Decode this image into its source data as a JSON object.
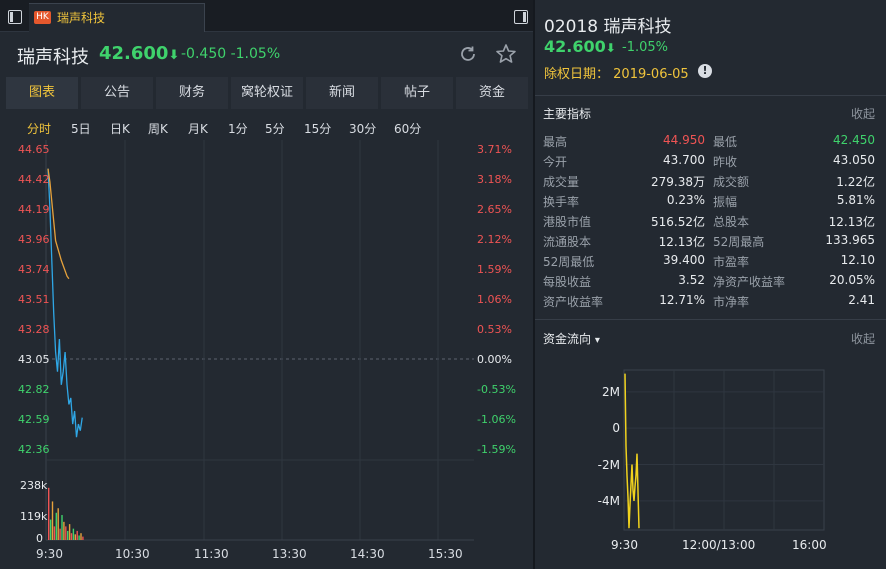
{
  "tab": {
    "badge": "HK",
    "title": "瑞声科技"
  },
  "quote": {
    "name": "瑞声科技",
    "price": "42.600",
    "arrow": "⬇",
    "change": "-0.450",
    "pct": "-1.05%"
  },
  "nav": [
    "图表",
    "公告",
    "财务",
    "窝轮权证",
    "新闻",
    "帖子",
    "资金"
  ],
  "periods": [
    "分时",
    "5日",
    "日K",
    "周K",
    "月K",
    "1分",
    "5分",
    "15分",
    "30分",
    "60分"
  ],
  "chart_data": [
    {
      "type": "line",
      "title": "分时",
      "y_price_ticks": [
        "44.65",
        "44.42",
        "44.19",
        "43.96",
        "43.74",
        "43.51",
        "43.28",
        "43.05",
        "42.82",
        "42.59",
        "42.36"
      ],
      "y_pct_ticks": [
        "3.71%",
        "3.18%",
        "2.65%",
        "2.12%",
        "1.59%",
        "1.06%",
        "0.53%",
        "0.00%",
        "-0.53%",
        "-1.06%",
        "-1.59%"
      ],
      "prev_close": 43.05,
      "ylim": [
        42.36,
        44.65
      ],
      "x_ticks": [
        "9:30",
        "10:30",
        "11:30",
        "13:30",
        "14:30",
        "15:30"
      ],
      "series": [
        {
          "color": "#2fa7e6",
          "values": [
            44.5,
            44.2,
            43.8,
            43.4,
            43.1,
            42.95,
            43.2,
            42.85,
            42.95,
            43.1,
            42.85,
            42.7,
            42.75,
            42.55,
            42.65,
            42.45,
            42.55,
            42.5,
            42.6
          ]
        },
        {
          "color": "#e6a23c",
          "values": [
            44.5,
            44.4,
            44.25,
            44.1,
            43.95,
            43.9,
            43.85,
            43.8,
            43.76,
            43.72,
            43.68,
            43.66
          ]
        }
      ],
      "volume_ticks": [
        "238k",
        "119k",
        "0"
      ],
      "volume": [
        230,
        90,
        170,
        60,
        120,
        140,
        50,
        110,
        80,
        60,
        40,
        70,
        30,
        50,
        25,
        40,
        20,
        30,
        15
      ]
    },
    {
      "type": "bar",
      "title": "资金流向",
      "y_ticks": [
        "2M",
        "0",
        "-2M",
        "-4M"
      ],
      "ylim": [
        -5.6,
        3.2
      ],
      "x_ticks": [
        "9:30",
        "12:00/13:00",
        "16:00"
      ],
      "values": [
        3.0,
        -1.0,
        -2.6,
        -3.8,
        -5.5,
        -4.2,
        -3.1,
        -2.0,
        -3.4,
        -4.0,
        -3.2,
        -2.6,
        -1.4,
        -3.5,
        -5.5
      ]
    }
  ],
  "right": {
    "code": "02018 瑞声科技",
    "price": "42.600",
    "arrow": "⬇",
    "pct": "-1.05%",
    "xdate_label": "除权日期：",
    "xdate": "2019-06-05",
    "metrics_title": "主要指标",
    "collapse": "收起",
    "metrics": [
      [
        "最高",
        "44.950",
        "最低",
        "42.450"
      ],
      [
        "今开",
        "43.700",
        "昨收",
        "43.050"
      ],
      [
        "成交量",
        "279.38万",
        "成交额",
        "1.22亿"
      ],
      [
        "换手率",
        "0.23%",
        "振幅",
        "5.81%"
      ],
      [
        "港股市值",
        "516.52亿",
        "总股本",
        "12.13亿"
      ],
      [
        "流通股本",
        "12.13亿",
        "52周最高",
        "133.965"
      ],
      [
        "52周最低",
        "39.400",
        "市盈率",
        "12.10"
      ],
      [
        "每股收益",
        "3.52",
        "净资产收益率",
        "20.05%"
      ],
      [
        "资产收益率",
        "12.71%",
        "市净率",
        "2.41"
      ]
    ],
    "flow_title": "资金流向",
    "flow_arrow": "▾"
  }
}
